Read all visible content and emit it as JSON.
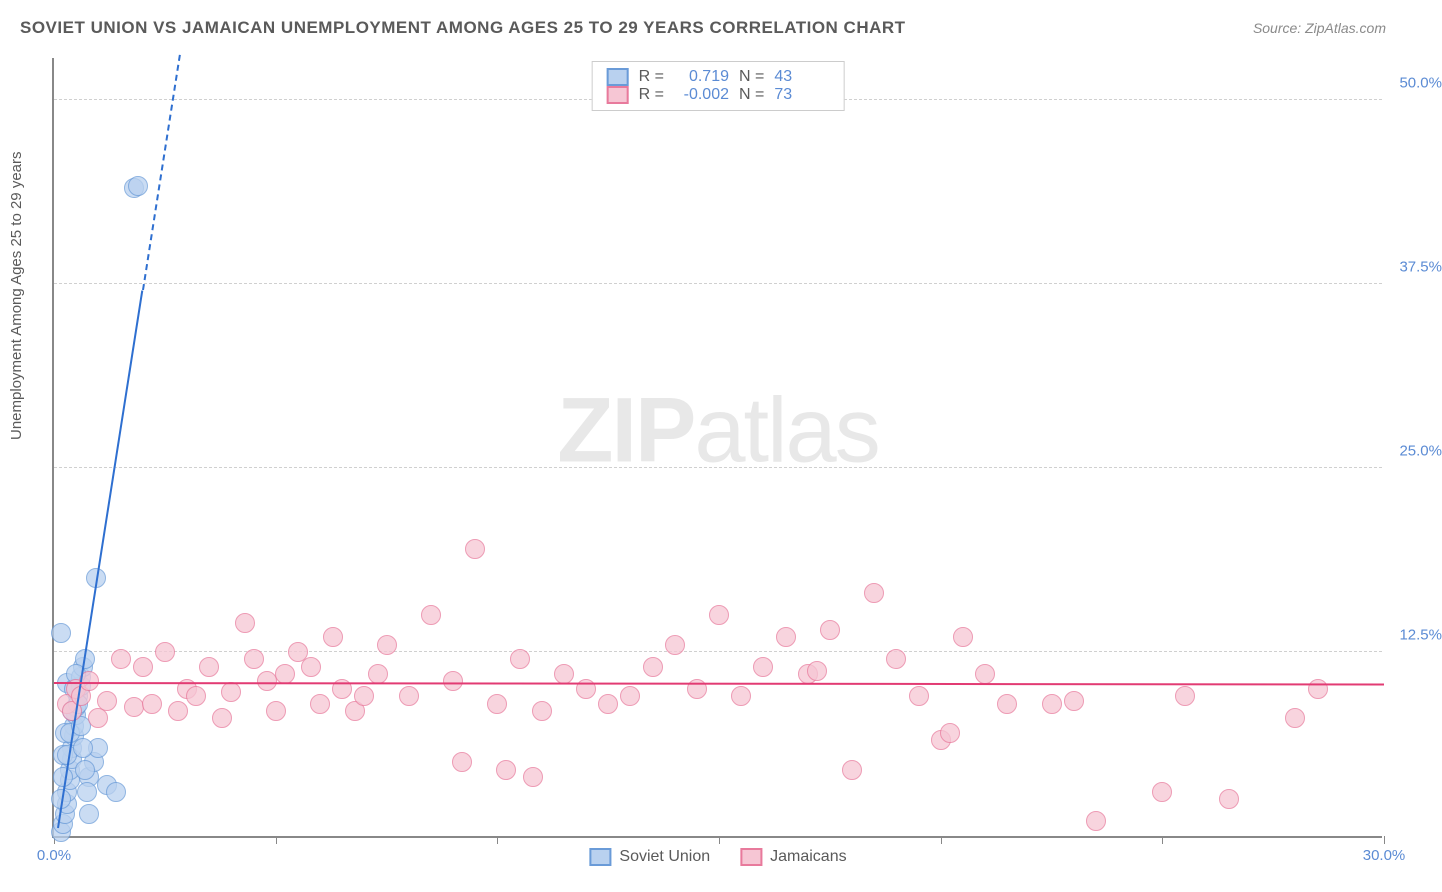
{
  "title": "SOVIET UNION VS JAMAICAN UNEMPLOYMENT AMONG AGES 25 TO 29 YEARS CORRELATION CHART",
  "source_label": "Source: ZipAtlas.com",
  "y_axis_label": "Unemployment Among Ages 25 to 29 years",
  "watermark_bold": "ZIP",
  "watermark_light": "atlas",
  "chart": {
    "type": "scatter",
    "xlim": [
      0,
      30
    ],
    "ylim": [
      0,
      53
    ],
    "x_ticks": [
      0,
      5,
      10,
      15,
      20,
      25,
      30
    ],
    "x_tick_labels": {
      "0": "0.0%",
      "30": "30.0%"
    },
    "y_ticks": [
      12.5,
      25.0,
      37.5,
      50.0
    ],
    "y_tick_labels": [
      "12.5%",
      "25.0%",
      "37.5%",
      "50.0%"
    ],
    "background_color": "#ffffff",
    "grid_color": "#d0d0d0",
    "axis_color": "#888888",
    "point_radius": 10,
    "series": [
      {
        "name": "Soviet Union",
        "fill": "#b9d1ef",
        "stroke": "#6a9bd8",
        "trend_color": "#2e6fd0",
        "R": "0.719",
        "N": "43",
        "trend": {
          "x1": 0.1,
          "y1": 0.5,
          "x2": 2.0,
          "y2": 37.0,
          "extend_dashed_to_y": 53
        },
        "points": [
          [
            0.15,
            0.3
          ],
          [
            0.2,
            0.8
          ],
          [
            0.25,
            1.5
          ],
          [
            0.3,
            2.2
          ],
          [
            0.3,
            3.0
          ],
          [
            0.35,
            3.8
          ],
          [
            0.35,
            4.5
          ],
          [
            0.4,
            5.2
          ],
          [
            0.4,
            6.0
          ],
          [
            0.45,
            6.8
          ],
          [
            0.45,
            7.5
          ],
          [
            0.5,
            8.2
          ],
          [
            0.5,
            8.8
          ],
          [
            0.55,
            9.5
          ],
          [
            0.3,
            10.4
          ],
          [
            0.6,
            10.2
          ],
          [
            0.6,
            10.8
          ],
          [
            0.65,
            11.5
          ],
          [
            0.7,
            12.0
          ],
          [
            0.15,
            13.8
          ],
          [
            0.8,
            4.0
          ],
          [
            0.9,
            5.0
          ],
          [
            1.0,
            6.0
          ],
          [
            1.2,
            3.5
          ],
          [
            1.4,
            3.0
          ],
          [
            0.2,
            5.5
          ],
          [
            0.25,
            7.0
          ],
          [
            0.95,
            17.5
          ],
          [
            1.8,
            44.0
          ],
          [
            1.9,
            44.2
          ],
          [
            0.15,
            2.5
          ],
          [
            0.2,
            4.0
          ],
          [
            0.3,
            5.5
          ],
          [
            0.35,
            7.0
          ],
          [
            0.4,
            8.5
          ],
          [
            0.45,
            10.0
          ],
          [
            0.5,
            11.0
          ],
          [
            0.55,
            9.0
          ],
          [
            0.6,
            7.5
          ],
          [
            0.65,
            6.0
          ],
          [
            0.7,
            4.5
          ],
          [
            0.75,
            3.0
          ],
          [
            0.8,
            1.5
          ]
        ]
      },
      {
        "name": "Jamaicans",
        "fill": "#f6c6d4",
        "stroke": "#e87a9c",
        "trend_color": "#e23b73",
        "R": "-0.002",
        "N": "73",
        "trend": {
          "x1": 0,
          "y1": 10.3,
          "x2": 30,
          "y2": 10.2
        },
        "points": [
          [
            0.3,
            9.0
          ],
          [
            0.4,
            8.5
          ],
          [
            0.5,
            10.0
          ],
          [
            0.6,
            9.5
          ],
          [
            0.8,
            10.5
          ],
          [
            1.0,
            8.0
          ],
          [
            1.2,
            9.2
          ],
          [
            1.5,
            12.0
          ],
          [
            1.8,
            8.8
          ],
          [
            2.0,
            11.5
          ],
          [
            2.2,
            9.0
          ],
          [
            2.5,
            12.5
          ],
          [
            2.8,
            8.5
          ],
          [
            3.0,
            10.0
          ],
          [
            3.2,
            9.5
          ],
          [
            3.5,
            11.5
          ],
          [
            3.8,
            8.0
          ],
          [
            4.0,
            9.8
          ],
          [
            4.3,
            14.5
          ],
          [
            4.5,
            12.0
          ],
          [
            4.8,
            10.5
          ],
          [
            5.0,
            8.5
          ],
          [
            5.2,
            11.0
          ],
          [
            5.5,
            12.5
          ],
          [
            5.8,
            11.5
          ],
          [
            6.0,
            9.0
          ],
          [
            6.3,
            13.5
          ],
          [
            6.5,
            10.0
          ],
          [
            6.8,
            8.5
          ],
          [
            7.0,
            9.5
          ],
          [
            7.3,
            11.0
          ],
          [
            7.5,
            13.0
          ],
          [
            8.0,
            9.5
          ],
          [
            8.5,
            15.0
          ],
          [
            9.0,
            10.5
          ],
          [
            9.2,
            5.0
          ],
          [
            9.5,
            19.5
          ],
          [
            10.0,
            9.0
          ],
          [
            10.2,
            4.5
          ],
          [
            10.5,
            12.0
          ],
          [
            10.8,
            4.0
          ],
          [
            11.0,
            8.5
          ],
          [
            11.5,
            11.0
          ],
          [
            12.0,
            10.0
          ],
          [
            12.5,
            9.0
          ],
          [
            13.0,
            9.5
          ],
          [
            13.5,
            11.5
          ],
          [
            14.0,
            13.0
          ],
          [
            14.5,
            10.0
          ],
          [
            15.0,
            15.0
          ],
          [
            15.5,
            9.5
          ],
          [
            16.0,
            11.5
          ],
          [
            16.5,
            13.5
          ],
          [
            17.0,
            11.0
          ],
          [
            17.2,
            11.2
          ],
          [
            17.5,
            14.0
          ],
          [
            18.0,
            4.5
          ],
          [
            18.5,
            16.5
          ],
          [
            19.0,
            12.0
          ],
          [
            19.5,
            9.5
          ],
          [
            20.0,
            6.5
          ],
          [
            20.2,
            7.0
          ],
          [
            20.5,
            13.5
          ],
          [
            21.0,
            11.0
          ],
          [
            21.5,
            9.0
          ],
          [
            22.5,
            9.0
          ],
          [
            23.0,
            9.2
          ],
          [
            23.5,
            1.0
          ],
          [
            25.0,
            3.0
          ],
          [
            25.5,
            9.5
          ],
          [
            26.5,
            2.5
          ],
          [
            28.0,
            8.0
          ],
          [
            28.5,
            10.0
          ]
        ]
      }
    ]
  },
  "legend_bottom": [
    {
      "label": "Soviet Union",
      "fill": "#b9d1ef",
      "stroke": "#6a9bd8"
    },
    {
      "label": "Jamaicans",
      "fill": "#f6c6d4",
      "stroke": "#e87a9c"
    }
  ]
}
